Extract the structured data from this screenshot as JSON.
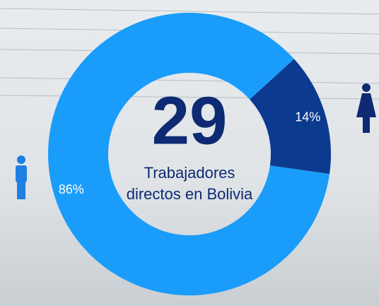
{
  "chart_data": {
    "type": "pie",
    "donut": true,
    "center_value": "29",
    "center_text": [
      "Trabajadores",
      "directos en Bolivia"
    ],
    "values": [
      14,
      86
    ],
    "value_labels": [
      "14%",
      "86%"
    ],
    "colors": [
      "#0b3a8f",
      "#1a9cfb"
    ]
  }
}
